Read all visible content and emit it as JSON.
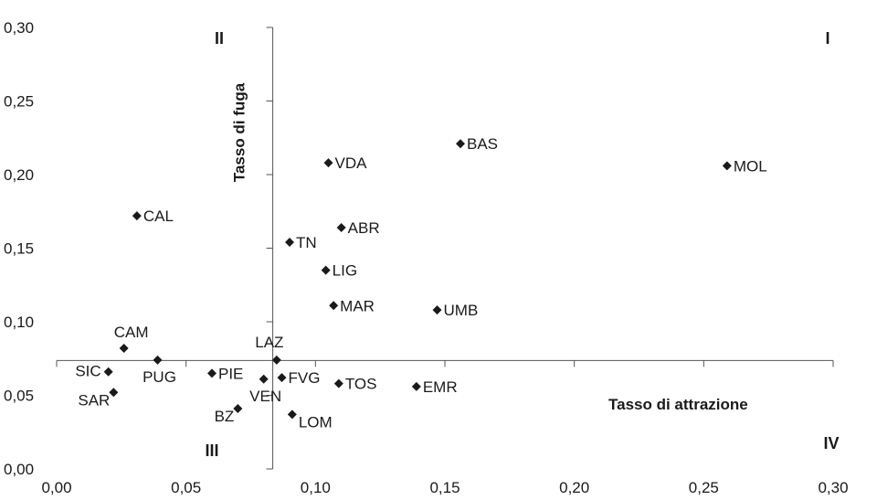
{
  "chart_data": {
    "type": "scatter",
    "xlabel": "Tasso di attrazione",
    "ylabel": "Tasso di fuga",
    "xlim": [
      0,
      0.3
    ],
    "ylim": [
      0,
      0.3
    ],
    "x_ticks": [
      "0,00",
      "0,05",
      "0,10",
      "0,15",
      "0,20",
      "0,25",
      "0,30"
    ],
    "y_ticks": [
      "0,00",
      "0,05",
      "0,10",
      "0,15",
      "0,20",
      "0,25",
      "0,30"
    ],
    "crosshair": {
      "x": 0.0835,
      "y": 0.0737
    },
    "quadrant_labels": [
      "I",
      "II",
      "III",
      "IV"
    ],
    "marker": "diamond",
    "marker_color": "#1a1a1a",
    "grid": false,
    "points": [
      {
        "label": "MOL",
        "x": 0.259,
        "y": 0.206
      },
      {
        "label": "BAS",
        "x": 0.156,
        "y": 0.221
      },
      {
        "label": "VDA",
        "x": 0.105,
        "y": 0.208
      },
      {
        "label": "ABR",
        "x": 0.11,
        "y": 0.164
      },
      {
        "label": "TN",
        "x": 0.09,
        "y": 0.154
      },
      {
        "label": "LIG",
        "x": 0.104,
        "y": 0.135
      },
      {
        "label": "MAR",
        "x": 0.107,
        "y": 0.111
      },
      {
        "label": "UMB",
        "x": 0.147,
        "y": 0.108
      },
      {
        "label": "CAL",
        "x": 0.031,
        "y": 0.172
      },
      {
        "label": "CAM",
        "x": 0.026,
        "y": 0.082
      },
      {
        "label": "PUG",
        "x": 0.039,
        "y": 0.074
      },
      {
        "label": "SIC",
        "x": 0.02,
        "y": 0.066
      },
      {
        "label": "SAR",
        "x": 0.022,
        "y": 0.052
      },
      {
        "label": "PIE",
        "x": 0.06,
        "y": 0.065
      },
      {
        "label": "BZ",
        "x": 0.07,
        "y": 0.041
      },
      {
        "label": "LAZ",
        "x": 0.085,
        "y": 0.074
      },
      {
        "label": "VEN",
        "x": 0.08,
        "y": 0.061
      },
      {
        "label": "FVG",
        "x": 0.087,
        "y": 0.062
      },
      {
        "label": "TOS",
        "x": 0.109,
        "y": 0.058
      },
      {
        "label": "EMR",
        "x": 0.139,
        "y": 0.056
      },
      {
        "label": "LOM",
        "x": 0.091,
        "y": 0.037
      }
    ]
  }
}
